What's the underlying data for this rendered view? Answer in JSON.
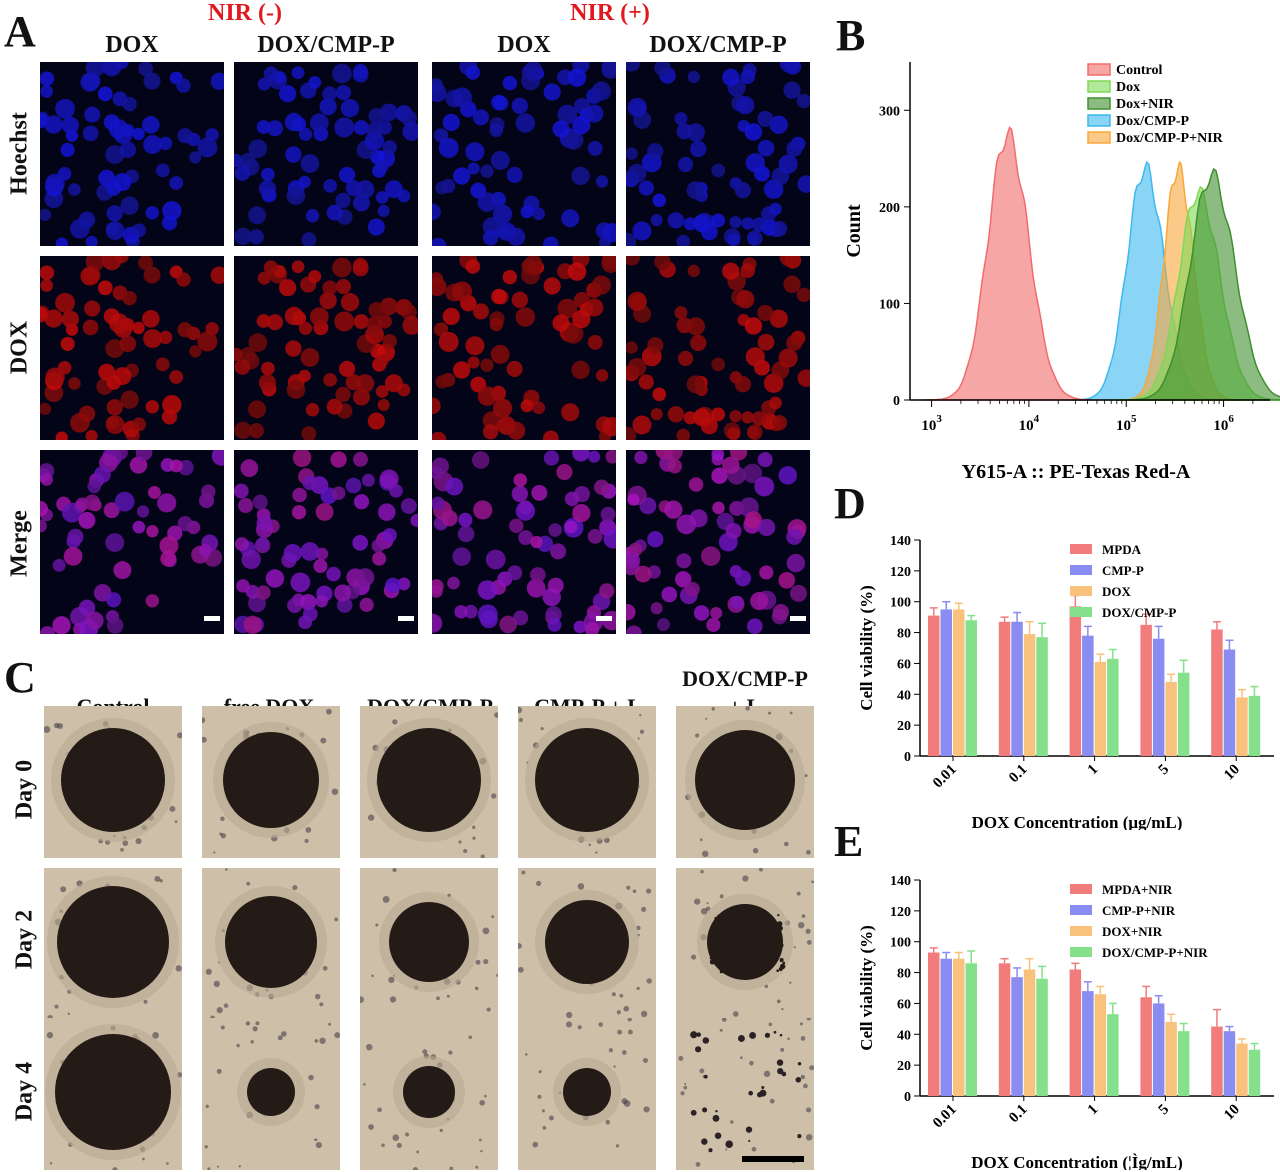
{
  "panelA": {
    "letter": "A",
    "nir_neg": "NIR (-)",
    "nir_pos": "NIR (+)",
    "columns": [
      "DOX",
      "DOX/CMP-P",
      "DOX",
      "DOX/CMP-P"
    ],
    "rows": [
      "Hoechst",
      "DOX",
      "Merge"
    ]
  },
  "panelB": {
    "letter": "B",
    "ylabel": "Count",
    "xlabel": "Y615-A :: PE-Texas Red-A",
    "legend": [
      "Control",
      "Dox",
      "Dox+NIR",
      "Dox/CMP-P",
      "Dox/CMP-P+NIR"
    ],
    "colors": [
      "#f26b6b",
      "#7fd857",
      "#3f8f2e",
      "#3cb9ee",
      "#f8a73a"
    ]
  },
  "panelC": {
    "letter": "C",
    "columns": [
      "Control",
      "free DOX",
      "DOX/CMP-P",
      "CMP-P + L",
      "DOX/CMP-P\n+ L"
    ],
    "col_line1": [
      "Control",
      "free DOX",
      "DOX/CMP-P",
      "CMP-P + L",
      "DOX/CMP-P"
    ],
    "col_line2": [
      "",
      "",
      "",
      "",
      "+ L"
    ],
    "rows": [
      "Day 0",
      "Day 2",
      "Day 4"
    ]
  },
  "panelD": {
    "letter": "D",
    "ylabel": "Cell viability (%)",
    "xlabel": "DOX Concentration (μg/mL)"
  },
  "panelE": {
    "letter": "E",
    "ylabel": "Cell viability (%)",
    "xlabel": "DOX Concentration (¦Ìg/mL)"
  },
  "chart_data": [
    {
      "type": "area",
      "panel": "B",
      "xlabel": "Y615-A :: PE-Texas Red-A",
      "ylabel": "Count",
      "xscale": "log",
      "xlim": [
        600,
        3000000
      ],
      "ylim": [
        0,
        350
      ],
      "yticks": [
        0,
        100,
        200,
        300
      ],
      "xticks": [
        "10^3",
        "10^4",
        "10^5",
        "10^6"
      ],
      "legend_position": "top-right",
      "series": [
        {
          "name": "Control",
          "peak_x": 6000,
          "peak_y": 275,
          "width_decades": 0.22
        },
        {
          "name": "Dox",
          "peak_x": 550000,
          "peak_y": 215,
          "width_decades": 0.22
        },
        {
          "name": "Dox+NIR",
          "peak_x": 750000,
          "peak_y": 233,
          "width_decades": 0.24
        },
        {
          "name": "Dox/CMP-P",
          "peak_x": 155000,
          "peak_y": 240,
          "width_decades": 0.2
        },
        {
          "name": "Dox/CMP-P+NIR",
          "peak_x": 340000,
          "peak_y": 240,
          "width_decades": 0.16
        }
      ]
    },
    {
      "type": "bar",
      "panel": "D",
      "categories": [
        "0.01",
        "0.1",
        "1",
        "5",
        "10"
      ],
      "xlabel": "DOX Concentration (μg/mL)",
      "ylabel": "Cell viability (%)",
      "ylim": [
        0,
        140
      ],
      "yticks": [
        0,
        20,
        40,
        60,
        80,
        100,
        120,
        140
      ],
      "legend_position": "top-right",
      "series": [
        {
          "name": "MPDA",
          "values": [
            91,
            87,
            97,
            85,
            82
          ],
          "errors": [
            5,
            3,
            7,
            7,
            5
          ]
        },
        {
          "name": "CMP-P",
          "values": [
            95,
            87,
            78,
            76,
            69
          ],
          "errors": [
            5,
            6,
            6,
            8,
            6
          ]
        },
        {
          "name": "DOX",
          "values": [
            95,
            79,
            61,
            48,
            38
          ],
          "errors": [
            4,
            8,
            5,
            5,
            5
          ]
        },
        {
          "name": "DOX/CMP-P",
          "values": [
            88,
            77,
            63,
            54,
            39
          ],
          "errors": [
            3,
            9,
            6,
            8,
            6
          ]
        }
      ]
    },
    {
      "type": "bar",
      "panel": "E",
      "categories": [
        "0.01",
        "0.1",
        "1",
        "5",
        "10"
      ],
      "xlabel": "DOX Concentration (¦Ìg/mL)",
      "ylabel": "Cell viability (%)",
      "ylim": [
        0,
        140
      ],
      "yticks": [
        0,
        20,
        40,
        60,
        80,
        100,
        120,
        140
      ],
      "legend_position": "top-right",
      "series": [
        {
          "name": "MPDA+NIR",
          "values": [
            93,
            86,
            82,
            64,
            45
          ],
          "errors": [
            3,
            3,
            4,
            7,
            11
          ]
        },
        {
          "name": "CMP-P+NIR",
          "values": [
            89,
            77,
            68,
            60,
            42
          ],
          "errors": [
            4,
            6,
            6,
            5,
            3
          ]
        },
        {
          "name": "DOX+NIR",
          "values": [
            89,
            82,
            66,
            48,
            34
          ],
          "errors": [
            4,
            7,
            5,
            5,
            3
          ]
        },
        {
          "name": "DOX/CMP-P+NIR",
          "values": [
            86,
            76,
            53,
            42,
            30
          ],
          "errors": [
            8,
            8,
            7,
            5,
            4
          ]
        }
      ]
    }
  ],
  "bar_colors": [
    "#f27c7c",
    "#8a8cf2",
    "#f9c27c",
    "#84e08a"
  ]
}
